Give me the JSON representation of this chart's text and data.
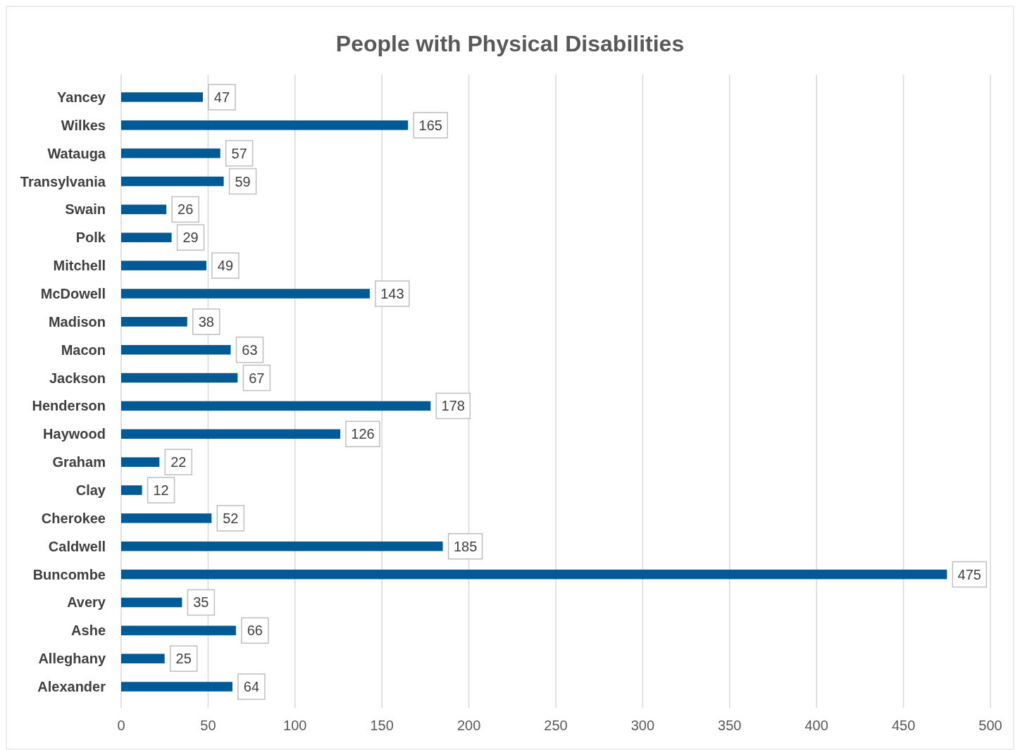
{
  "chart_data": {
    "type": "bar",
    "orientation": "horizontal",
    "title": "People with Physical Disabilities",
    "categories": [
      "Yancey",
      "Wilkes",
      "Watauga",
      "Transylvania",
      "Swain",
      "Polk",
      "Mitchell",
      "McDowell",
      "Madison",
      "Macon",
      "Jackson",
      "Henderson",
      "Haywood",
      "Graham",
      "Clay",
      "Cherokee",
      "Caldwell",
      "Buncombe",
      "Avery",
      "Ashe",
      "Alleghany",
      "Alexander"
    ],
    "values": [
      47,
      165,
      57,
      59,
      26,
      29,
      49,
      143,
      38,
      63,
      67,
      178,
      126,
      22,
      12,
      52,
      185,
      475,
      35,
      66,
      25,
      64
    ],
    "color": "#005a96",
    "xlim": [
      0,
      500
    ],
    "xticks": [
      0,
      50,
      100,
      150,
      200,
      250,
      300,
      350,
      400,
      450,
      500
    ],
    "grid": "x",
    "data_labels": true
  }
}
